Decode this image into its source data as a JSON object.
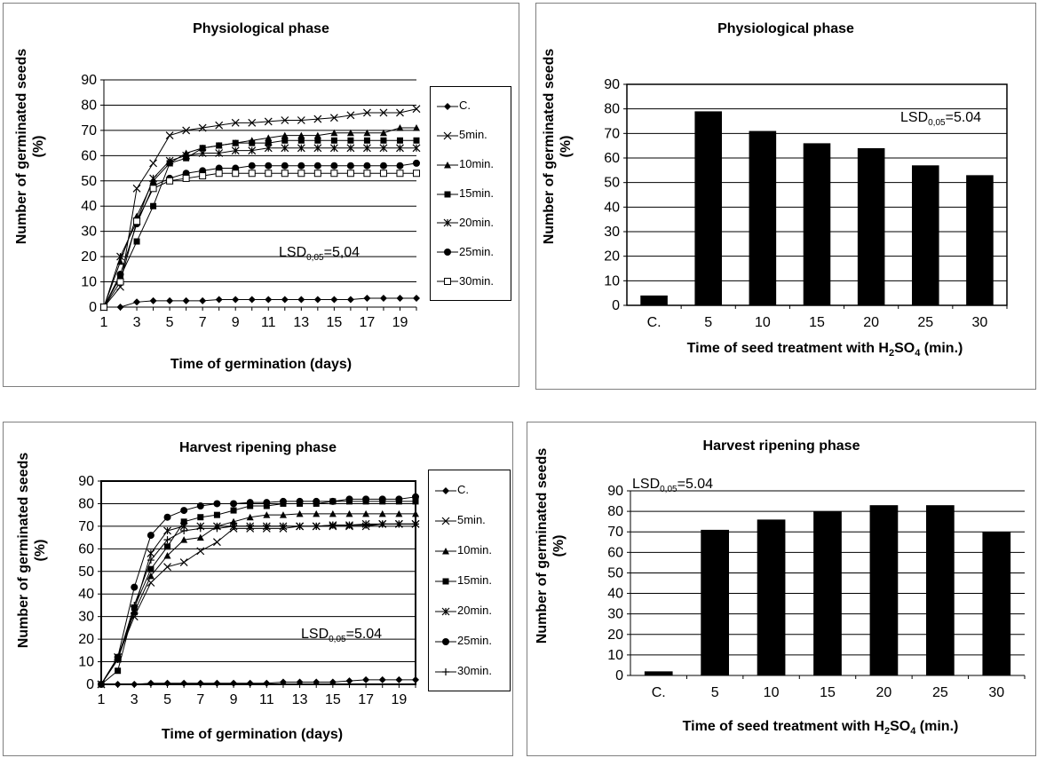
{
  "panels": [
    {
      "title": "Physiological phase",
      "ylabel_line1": "Number of  germinated  seeds",
      "ylabel_line2": "(%)",
      "xlabel": "Time of  germination (days)",
      "lsd_main": "LSD",
      "lsd_sub": "0,05",
      "lsd_value": "=5,04"
    },
    {
      "title": "Physiological phase",
      "ylabel_line1": "Number of  germinated  seeds",
      "ylabel_line2": "(%)",
      "xlabel_pre": "Time of  seed  treatment  with H",
      "xlabel_sub1": "2",
      "xlabel_mid": "SO",
      "xlabel_sub2": "4",
      "xlabel_post": " (min.)",
      "lsd_main": "LSD",
      "lsd_sub": "0,05",
      "lsd_value": "=5.04"
    },
    {
      "title": "Harvest ripening phase",
      "ylabel_line1": "Number of  germinated  seeds",
      "ylabel_line2": "(%)",
      "xlabel": "Time of  germination (days)",
      "lsd_main": "LSD",
      "lsd_sub": "0,05",
      "lsd_value": "=5.04"
    },
    {
      "title": "Harvest ripening  phase",
      "ylabel_line1": "Number of  germinated  seeds",
      "ylabel_line2": "(%)",
      "xlabel_pre": "Time  of  seed  treatment  with  H",
      "xlabel_sub1": "2",
      "xlabel_mid": "SO",
      "xlabel_sub2": "4",
      "xlabel_post": " (min.)",
      "lsd_main": "LSD",
      "lsd_sub": "0,05",
      "lsd_value": "=5.04"
    }
  ],
  "chart_data": [
    {
      "type": "line",
      "title": "Physiological phase",
      "xlabel": "Time of  germination (days)",
      "ylabel": "Number of  germinated  seeds (%)",
      "xlim": [
        1,
        20
      ],
      "ylim": [
        0,
        90
      ],
      "x_ticks": [
        "1",
        "3",
        "5",
        "7",
        "9",
        "11",
        "13",
        "15",
        "17",
        "19"
      ],
      "y_ticks": [
        "0",
        "10",
        "20",
        "30",
        "40",
        "50",
        "60",
        "70",
        "80",
        "90"
      ],
      "grid": "horizontal",
      "legend": "right",
      "x": [
        1,
        2,
        3,
        4,
        5,
        6,
        7,
        8,
        9,
        10,
        11,
        12,
        13,
        14,
        15,
        16,
        17,
        18,
        19,
        20
      ],
      "series": [
        {
          "name": "C.",
          "marker": "diamond",
          "values": [
            0,
            0,
            2,
            2.5,
            2.5,
            2.5,
            2.5,
            3,
            3,
            3,
            3,
            3,
            3,
            3,
            3,
            3,
            3.5,
            3.5,
            3.5,
            3.5
          ]
        },
        {
          "name": "5min.",
          "marker": "x",
          "values": [
            0,
            8,
            47,
            57,
            68,
            70,
            71,
            72,
            73,
            73,
            73.5,
            74,
            74,
            74.5,
            75,
            76,
            77,
            77,
            77,
            78.5
          ]
        },
        {
          "name": "10min.",
          "marker": "triangle",
          "values": [
            0,
            18,
            36,
            50,
            57,
            61,
            63,
            64,
            65,
            66,
            67,
            68,
            68,
            68,
            69,
            69,
            69,
            69,
            71,
            71
          ]
        },
        {
          "name": "15min.",
          "marker": "square",
          "values": [
            0,
            12,
            26,
            40,
            57,
            59,
            63,
            64,
            65,
            65,
            65,
            66,
            66,
            66,
            66,
            66,
            66,
            66,
            66,
            66
          ]
        },
        {
          "name": "20min.",
          "marker": "star",
          "values": [
            0,
            20,
            34,
            51,
            58,
            60,
            61,
            61,
            62,
            62,
            63,
            63,
            63,
            63,
            63,
            63,
            63,
            63,
            63,
            63
          ]
        },
        {
          "name": "25min.",
          "marker": "circle",
          "values": [
            0,
            13,
            33,
            48,
            51,
            53,
            54,
            55,
            55,
            56,
            56,
            56,
            56,
            56,
            56,
            56,
            56,
            56,
            56,
            57
          ]
        },
        {
          "name": "30min.",
          "marker": "open-square",
          "values": [
            0,
            10,
            34,
            47,
            50,
            51,
            52,
            53,
            53,
            53,
            53,
            53,
            53,
            53,
            53,
            53,
            53,
            53,
            53,
            53
          ]
        }
      ],
      "annotation": "LSD0,05=5,04"
    },
    {
      "type": "bar",
      "title": "Physiological phase",
      "xlabel": "Time of  seed  treatment  with H2SO4 (min.)",
      "ylabel": "Number of  germinated  seeds (%)",
      "categories": [
        "C.",
        "5",
        "10",
        "15",
        "20",
        "25",
        "30"
      ],
      "values": [
        4,
        79,
        71,
        66,
        64,
        57,
        53
      ],
      "ylim": [
        0,
        90
      ],
      "y_ticks": [
        "0",
        "10",
        "20",
        "30",
        "40",
        "50",
        "60",
        "70",
        "80",
        "90"
      ],
      "grid": "horizontal",
      "annotation": "LSD0,05=5.04"
    },
    {
      "type": "line",
      "title": "Harvest ripening phase",
      "xlabel": "Time of  germination (days)",
      "ylabel": "Number of  germinated  seeds (%)",
      "xlim": [
        1,
        20
      ],
      "ylim": [
        0,
        90
      ],
      "x_ticks": [
        "1",
        "3",
        "5",
        "7",
        "9",
        "11",
        "13",
        "15",
        "17",
        "19"
      ],
      "y_ticks": [
        "0",
        "10",
        "20",
        "30",
        "40",
        "50",
        "60",
        "70",
        "80",
        "90"
      ],
      "grid": "horizontal",
      "legend": "right",
      "x": [
        1,
        2,
        3,
        4,
        5,
        6,
        7,
        8,
        9,
        10,
        11,
        12,
        13,
        14,
        15,
        16,
        17,
        18,
        19,
        20
      ],
      "series": [
        {
          "name": "C.",
          "marker": "diamond",
          "values": [
            0,
            0,
            0,
            0.5,
            0.5,
            0.5,
            0.5,
            0.5,
            0.5,
            0.5,
            0.5,
            1,
            1,
            1,
            1,
            1.5,
            2,
            2,
            2,
            2
          ]
        },
        {
          "name": "5min.",
          "marker": "x",
          "values": [
            0,
            12,
            30,
            45,
            52,
            54,
            59,
            63,
            69,
            69,
            69,
            69,
            70,
            70,
            70,
            70,
            70,
            71,
            71,
            71
          ]
        },
        {
          "name": "10min.",
          "marker": "triangle",
          "values": [
            0,
            11,
            32,
            48,
            57,
            64,
            65,
            70,
            72,
            74,
            75,
            75,
            75.5,
            75.5,
            75.5,
            75.5,
            75.5,
            75.5,
            75.5,
            75.5
          ]
        },
        {
          "name": "15min.",
          "marker": "square",
          "values": [
            0,
            6,
            34,
            51,
            61,
            72,
            74,
            75,
            77,
            79,
            79,
            80,
            80,
            80,
            81,
            81,
            81,
            81,
            81,
            81
          ]
        },
        {
          "name": "20min.",
          "marker": "star",
          "values": [
            0,
            12,
            33,
            58,
            68,
            70,
            70,
            70,
            70,
            70,
            70,
            70,
            70,
            70,
            70.5,
            70.5,
            71,
            71,
            71,
            71
          ]
        },
        {
          "name": "25min.",
          "marker": "circle",
          "values": [
            0,
            12,
            43,
            66,
            74,
            77,
            79,
            80,
            80,
            80.5,
            80.5,
            81,
            81,
            81,
            81,
            82,
            82,
            82,
            82,
            83
          ]
        },
        {
          "name": "30min.",
          "marker": "plus",
          "values": [
            0,
            11,
            35,
            55,
            64,
            68,
            69,
            69,
            70,
            70,
            70,
            70,
            70,
            70,
            70.5,
            70.5,
            70.5,
            71,
            71,
            71
          ]
        }
      ],
      "annotation": "LSD0,05=5.04"
    },
    {
      "type": "bar",
      "title": "Harvest ripening  phase",
      "xlabel": "Time  of  seed  treatment  with  H2SO4 (min.)",
      "ylabel": "Number of  germinated  seeds (%)",
      "categories": [
        "C.",
        "5",
        "10",
        "15",
        "20",
        "25",
        "30"
      ],
      "values": [
        2,
        71,
        76,
        80,
        83,
        83,
        70
      ],
      "ylim": [
        0,
        90
      ],
      "y_ticks": [
        "0",
        "10",
        "20",
        "30",
        "40",
        "50",
        "60",
        "70",
        "80",
        "90"
      ],
      "grid": "horizontal",
      "annotation": "LSD0,05=5.04"
    }
  ]
}
